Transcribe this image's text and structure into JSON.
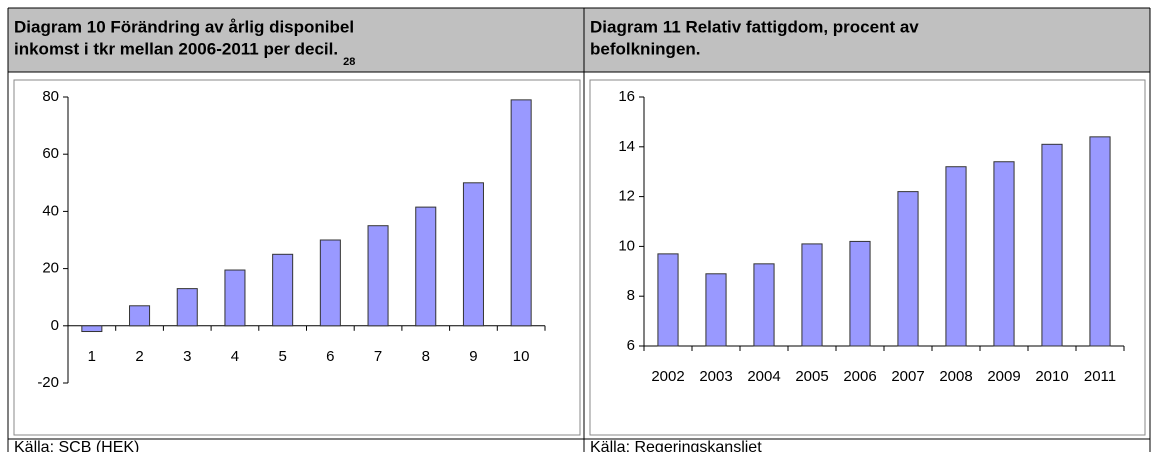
{
  "chart_data": [
    {
      "type": "bar",
      "title": [
        "Diagram 10 Förändring av årlig disponibel",
        "inkomst i tkr mellan 2006-2011 per decil."
      ],
      "footnote_ref": "28",
      "categories": [
        "1",
        "2",
        "3",
        "4",
        "5",
        "6",
        "7",
        "8",
        "9",
        "10"
      ],
      "values": [
        -2,
        7,
        13,
        19.5,
        25,
        30,
        35,
        41.5,
        50,
        79
      ],
      "color": "#9999ff",
      "ylim": [
        -20,
        80
      ],
      "yticks": [
        -20,
        0,
        20,
        40,
        60,
        80
      ],
      "source": "Källa: SCB (HEK)"
    },
    {
      "type": "bar",
      "title": [
        "Diagram 11 Relativ fattigdom, procent av",
        "befolkningen."
      ],
      "categories": [
        "2002",
        "2003",
        "2004",
        "2005",
        "2006",
        "2007",
        "2008",
        "2009",
        "2010",
        "2011"
      ],
      "values": [
        9.7,
        8.9,
        9.3,
        10.1,
        10.2,
        12.2,
        13.2,
        13.4,
        14.1,
        14.4
      ],
      "color": "#9999ff",
      "ylim": [
        6,
        16
      ],
      "yticks": [
        6,
        8,
        10,
        12,
        14,
        16
      ],
      "source": "Källa: Regeringskansliet"
    }
  ]
}
